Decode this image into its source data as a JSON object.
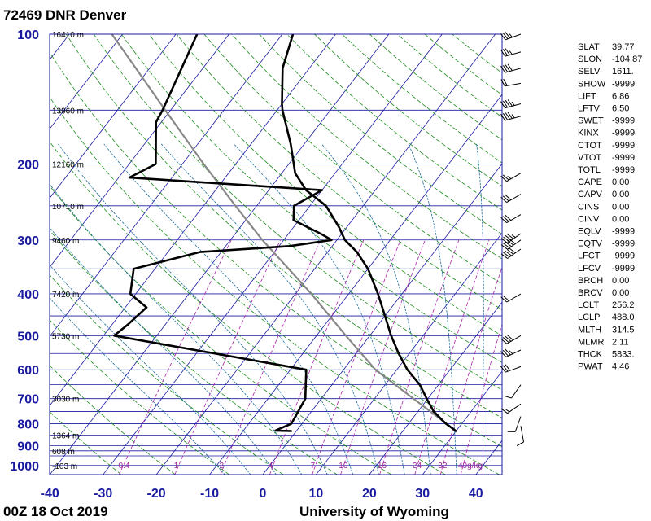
{
  "title": "72469 DNR Denver",
  "footer_left": "00Z 18 Oct 2019",
  "footer_right": "University of Wyoming",
  "colors": {
    "isobar": "#1a1aa0",
    "isotherm": "#1a1aa0",
    "dry_adiabat": "#1a8a1a",
    "moist_adiabat": "#1a6a9a",
    "mixing_ratio": "#aa22aa",
    "profile": "#000000",
    "parcel": "#888888"
  },
  "chart_data": {
    "type": "skew-t",
    "pressure_ticks": [
      100,
      200,
      300,
      400,
      500,
      600,
      700,
      800,
      900,
      1000
    ],
    "temperature_ticks": [
      -40,
      -30,
      -20,
      -10,
      0,
      10,
      20,
      30,
      40
    ],
    "xlim": [
      -40,
      45
    ],
    "ylim": [
      1050,
      100
    ],
    "y_scale": "log",
    "height_labels": [
      {
        "p": 100,
        "label": "16410 m"
      },
      {
        "p": 150,
        "label": "13960 m"
      },
      {
        "p": 200,
        "label": "12160 m"
      },
      {
        "p": 250,
        "label": "10710 m"
      },
      {
        "p": 300,
        "label": "9460 m"
      },
      {
        "p": 400,
        "label": "7420 m"
      },
      {
        "p": 500,
        "label": "5730 m"
      },
      {
        "p": 700,
        "label": "3030 m"
      },
      {
        "p": 850,
        "label": "1364 m"
      },
      {
        "p": 925,
        "label": "608 m"
      },
      {
        "p": 1000,
        "label": "-103 m"
      }
    ],
    "mixing_ratio_labels": [
      "0.4",
      "1",
      "2",
      "4",
      "7",
      "10",
      "16",
      "24",
      "32",
      "40g/kg"
    ],
    "mixing_ratios": [
      0.4,
      1,
      2,
      4,
      7,
      10,
      16,
      24,
      32,
      40
    ],
    "temperature_profile": [
      {
        "p": 832,
        "t": 30.0
      },
      {
        "p": 800,
        "t": 27.0
      },
      {
        "p": 750,
        "t": 23.0
      },
      {
        "p": 700,
        "t": 19.8
      },
      {
        "p": 650,
        "t": 16.5
      },
      {
        "p": 600,
        "t": 12.0
      },
      {
        "p": 550,
        "t": 8.0
      },
      {
        "p": 500,
        "t": 4.0
      },
      {
        "p": 450,
        "t": 0.0
      },
      {
        "p": 400,
        "t": -4.5
      },
      {
        "p": 350,
        "t": -10.0
      },
      {
        "p": 320,
        "t": -14.5
      },
      {
        "p": 300,
        "t": -18.5
      },
      {
        "p": 280,
        "t": -21.5
      },
      {
        "p": 250,
        "t": -27.0
      },
      {
        "p": 230,
        "t": -33.0
      },
      {
        "p": 210,
        "t": -37.5
      },
      {
        "p": 180,
        "t": -42.5
      },
      {
        "p": 150,
        "t": -49.0
      },
      {
        "p": 145,
        "t": -50.0
      },
      {
        "p": 120,
        "t": -55.0
      },
      {
        "p": 100,
        "t": -58.0
      }
    ],
    "dewpoint_profile": [
      {
        "p": 832,
        "t": -1.0
      },
      {
        "p": 830,
        "t": -4.0
      },
      {
        "p": 800,
        "t": -2.0
      },
      {
        "p": 700,
        "t": -3.0
      },
      {
        "p": 600,
        "t": -7.0
      },
      {
        "p": 500,
        "t": -48.0
      },
      {
        "p": 470,
        "t": -47.0
      },
      {
        "p": 430,
        "t": -46.0
      },
      {
        "p": 400,
        "t": -51.0
      },
      {
        "p": 350,
        "t": -54.0
      },
      {
        "p": 320,
        "t": -44.0
      },
      {
        "p": 310,
        "t": -28.0
      },
      {
        "p": 300,
        "t": -21.0
      },
      {
        "p": 290,
        "t": -24.0
      },
      {
        "p": 270,
        "t": -31.0
      },
      {
        "p": 250,
        "t": -33.0
      },
      {
        "p": 230,
        "t": -30.0
      },
      {
        "p": 215,
        "t": -68.0
      },
      {
        "p": 200,
        "t": -65.0
      },
      {
        "p": 160,
        "t": -71.0
      },
      {
        "p": 150,
        "t": -71.5
      },
      {
        "p": 100,
        "t": -76.0
      }
    ],
    "parcel_profile": [
      {
        "p": 832,
        "t": 30.0
      },
      {
        "p": 600,
        "t": 6.0
      },
      {
        "p": 500,
        "t": -4.5
      },
      {
        "p": 400,
        "t": -17.0
      },
      {
        "p": 300,
        "t": -34.0
      },
      {
        "p": 250,
        "t": -44.0
      },
      {
        "p": 200,
        "t": -56.0
      },
      {
        "p": 150,
        "t": -71.0
      },
      {
        "p": 100,
        "t": -92.0
      }
    ],
    "wind_barbs": [
      {
        "p": 100,
        "dir": 250,
        "kt": 35
      },
      {
        "p": 110,
        "dir": 255,
        "kt": 35
      },
      {
        "p": 120,
        "dir": 255,
        "kt": 40
      },
      {
        "p": 130,
        "dir": 260,
        "kt": 20
      },
      {
        "p": 145,
        "dir": 255,
        "kt": 45
      },
      {
        "p": 155,
        "dir": 255,
        "kt": 45
      },
      {
        "p": 210,
        "dir": 240,
        "kt": 25
      },
      {
        "p": 235,
        "dir": 240,
        "kt": 30
      },
      {
        "p": 262,
        "dir": 240,
        "kt": 30
      },
      {
        "p": 290,
        "dir": 235,
        "kt": 45
      },
      {
        "p": 300,
        "dir": 235,
        "kt": 50
      },
      {
        "p": 315,
        "dir": 235,
        "kt": 50
      },
      {
        "p": 400,
        "dir": 240,
        "kt": 20
      },
      {
        "p": 500,
        "dir": 240,
        "kt": 40
      },
      {
        "p": 540,
        "dir": 245,
        "kt": 35
      },
      {
        "p": 590,
        "dir": 250,
        "kt": 30
      },
      {
        "p": 650,
        "dir": 215,
        "kt": 10
      },
      {
        "p": 720,
        "dir": 235,
        "kt": 15
      },
      {
        "p": 770,
        "dir": 200,
        "kt": 10
      },
      {
        "p": 810,
        "dir": 170,
        "kt": 10
      }
    ]
  },
  "indices": [
    {
      "name": "SLAT",
      "value": "39.77"
    },
    {
      "name": "SLON",
      "value": "-104.87"
    },
    {
      "name": "SELV",
      "value": "1611."
    },
    {
      "name": "SHOW",
      "value": "-9999"
    },
    {
      "name": "LIFT",
      "value": "6.86"
    },
    {
      "name": "LFTV",
      "value": "6.50"
    },
    {
      "name": "SWET",
      "value": "-9999"
    },
    {
      "name": "KINX",
      "value": "-9999"
    },
    {
      "name": "CTOT",
      "value": "-9999"
    },
    {
      "name": "VTOT",
      "value": "-9999"
    },
    {
      "name": "TOTL",
      "value": "-9999"
    },
    {
      "name": "CAPE",
      "value": "0.00"
    },
    {
      "name": "CAPV",
      "value": "0.00"
    },
    {
      "name": "CINS",
      "value": "0.00"
    },
    {
      "name": "CINV",
      "value": "0.00"
    },
    {
      "name": "EQLV",
      "value": "-9999"
    },
    {
      "name": "EQTV",
      "value": "-9999"
    },
    {
      "name": "LFCT",
      "value": "-9999"
    },
    {
      "name": "LFCV",
      "value": "-9999"
    },
    {
      "name": "BRCH",
      "value": "0.00"
    },
    {
      "name": "BRCV",
      "value": "0.00"
    },
    {
      "name": "LCLT",
      "value": "256.2"
    },
    {
      "name": "LCLP",
      "value": "488.0"
    },
    {
      "name": "MLTH",
      "value": "314.5"
    },
    {
      "name": "MLMR",
      "value": "2.11"
    },
    {
      "name": "THCK",
      "value": "5833."
    },
    {
      "name": "PWAT",
      "value": "4.46"
    }
  ]
}
